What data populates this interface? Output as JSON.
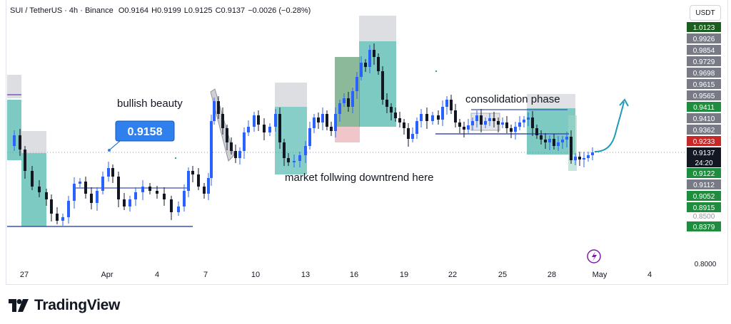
{
  "header": {
    "symbol": "SUI / TetherUS · 4h · Binance",
    "open": "O0.9164",
    "high": "H0.9199",
    "low": "L0.9125",
    "close": "C0.9137",
    "change": "−0.0026 (−0.28%)"
  },
  "unit_button": "USDT",
  "annotations": {
    "bullish": "bullish beauty",
    "bubble": "0.9158",
    "downtrend": "market follwing downtrend here",
    "consolidation": "consolidation phase"
  },
  "brand": "TradingView",
  "colors": {
    "up": "#2962ff",
    "down": "#131722",
    "long_zone": "#26a69a",
    "stop_zone": "#b2b5be",
    "buy_zone": "#3d8b56",
    "sell_zone": "#e8a0a8",
    "arrow": "#1e9bb7",
    "price_tag": "#131722",
    "bubble": "#2f80ed"
  },
  "chart_data": {
    "type": "candlestick",
    "symbol": "SUI / TetherUS",
    "interval": "4h",
    "exchange": "Binance",
    "x_ticks": [
      "27",
      "Apr",
      "4",
      "7",
      "10",
      "13",
      "16",
      "19",
      "22",
      "25",
      "28",
      "May",
      "4"
    ],
    "y_axis_labels": [
      {
        "value": "1.0123",
        "color": "#1b5e20"
      },
      {
        "value": "0.9926",
        "color": "#787b86"
      },
      {
        "value": "0.9854",
        "color": "#787b86"
      },
      {
        "value": "0.9729",
        "color": "#787b86"
      },
      {
        "value": "0.9698",
        "color": "#787b86"
      },
      {
        "value": "0.9615",
        "color": "#787b86"
      },
      {
        "value": "0.9565",
        "color": "#787b86"
      },
      {
        "value": "0.9411",
        "color": "#1e8e3e"
      },
      {
        "value": "0.9410",
        "color": "#787b86"
      },
      {
        "value": "0.9362",
        "color": "#787b86"
      },
      {
        "value": "0.9233",
        "color": "#c62828"
      },
      {
        "value": "0.9137",
        "color": "#131722"
      },
      {
        "value": "0.9122",
        "color": "#1e8e3e"
      },
      {
        "value": "0.9112",
        "color": "#787b86"
      },
      {
        "value": "0.9052",
        "color": "#1e8e3e"
      },
      {
        "value": "0.8915",
        "color": "#1e8e3e"
      },
      {
        "value": "0.8500",
        "color": "#ffffff"
      },
      {
        "value": "0.8379",
        "color": "#1e8e3e"
      }
    ],
    "y_plain_label": "0.8000",
    "countdown": "24:20",
    "last_price": 0.9137,
    "ohlc": {
      "open": 0.9164,
      "high": 0.9199,
      "low": 0.9125,
      "close": 0.9137
    }
  }
}
